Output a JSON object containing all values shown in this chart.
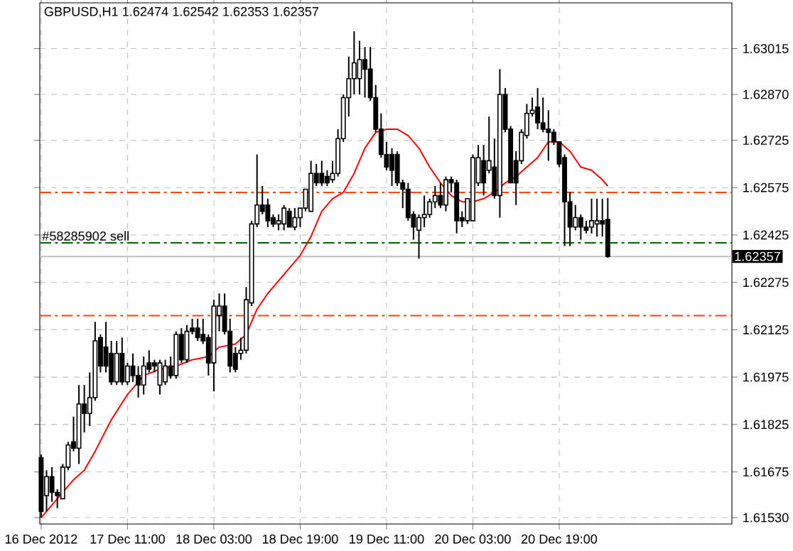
{
  "chart_data": {
    "type": "candlestick",
    "title": "GBPUSD,H1  1.62474 1.62542 1.62353 1.62357",
    "x": [
      "2012-12-16T19:00",
      "2012-12-16T20:00",
      "2012-12-16T21:00",
      "2012-12-16T22:00",
      "2012-12-16T23:00",
      "2012-12-17T00:00",
      "2012-12-17T01:00",
      "2012-12-17T02:00",
      "2012-12-17T03:00",
      "2012-12-17T04:00",
      "2012-12-17T05:00",
      "2012-12-17T06:00",
      "2012-12-17T07:00",
      "2012-12-17T08:00",
      "2012-12-17T09:00",
      "2012-12-17T10:00",
      "2012-12-17T11:00",
      "2012-12-17T12:00",
      "2012-12-17T13:00",
      "2012-12-17T14:00",
      "2012-12-17T15:00",
      "2012-12-17T16:00",
      "2012-12-17T17:00",
      "2012-12-17T18:00",
      "2012-12-17T19:00",
      "2012-12-17T20:00",
      "2012-12-17T21:00",
      "2012-12-17T22:00",
      "2012-12-17T23:00",
      "2012-12-18T00:00",
      "2012-12-18T01:00",
      "2012-12-18T02:00",
      "2012-12-18T03:00",
      "2012-12-18T04:00",
      "2012-12-18T05:00",
      "2012-12-18T06:00",
      "2012-12-18T07:00",
      "2012-12-18T08:00",
      "2012-12-18T09:00",
      "2012-12-18T10:00",
      "2012-12-18T11:00",
      "2012-12-18T12:00",
      "2012-12-18T13:00",
      "2012-12-18T14:00",
      "2012-12-18T15:00",
      "2012-12-18T16:00",
      "2012-12-18T17:00",
      "2012-12-18T18:00",
      "2012-12-18T19:00",
      "2012-12-18T20:00",
      "2012-12-18T21:00",
      "2012-12-18T22:00",
      "2012-12-18T23:00",
      "2012-12-19T00:00",
      "2012-12-19T01:00",
      "2012-12-19T02:00",
      "2012-12-19T03:00",
      "2012-12-19T04:00",
      "2012-12-19T05:00",
      "2012-12-19T06:00",
      "2012-12-19T07:00",
      "2012-12-19T08:00",
      "2012-12-19T09:00",
      "2012-12-19T10:00",
      "2012-12-19T11:00",
      "2012-12-19T12:00",
      "2012-12-19T13:00",
      "2012-12-19T14:00",
      "2012-12-19T15:00",
      "2012-12-19T16:00",
      "2012-12-19T17:00",
      "2012-12-19T18:00",
      "2012-12-19T19:00",
      "2012-12-19T20:00",
      "2012-12-19T21:00",
      "2012-12-19T22:00",
      "2012-12-19T23:00",
      "2012-12-20T00:00",
      "2012-12-20T01:00",
      "2012-12-20T02:00",
      "2012-12-20T03:00",
      "2012-12-20T04:00",
      "2012-12-20T05:00",
      "2012-12-20T06:00",
      "2012-12-20T07:00",
      "2012-12-20T08:00",
      "2012-12-20T09:00",
      "2012-12-20T10:00",
      "2012-12-20T11:00",
      "2012-12-20T12:00",
      "2012-12-20T13:00",
      "2012-12-20T14:00",
      "2012-12-20T15:00",
      "2012-12-20T16:00",
      "2012-12-20T17:00",
      "2012-12-20T18:00",
      "2012-12-20T19:00",
      "2012-12-20T20:00",
      "2012-12-20T21:00",
      "2012-12-20T22:00",
      "2012-12-20T23:00",
      "2012-12-21T00:00",
      "2012-12-21T01:00",
      "2012-12-21T02:00",
      "2012-12-21T03:00",
      "2012-12-21T04:00"
    ],
    "ohlc": [
      [
        1.6172,
        1.6173,
        1.6153,
        1.6155
      ],
      [
        1.616,
        1.6168,
        1.6155,
        1.6166
      ],
      [
        1.6166,
        1.6169,
        1.6158,
        1.6161
      ],
      [
        1.6161,
        1.6162,
        1.6156,
        1.616
      ],
      [
        1.6159,
        1.617,
        1.6159,
        1.6169
      ],
      [
        1.6169,
        1.6177,
        1.6168,
        1.6176
      ],
      [
        1.6177,
        1.6185,
        1.6174,
        1.6175
      ],
      [
        1.6175,
        1.6195,
        1.617,
        1.6189
      ],
      [
        1.6189,
        1.6195,
        1.618,
        1.6186
      ],
      [
        1.6186,
        1.6199,
        1.6182,
        1.6191
      ],
      [
        1.6191,
        1.6215,
        1.619,
        1.6209
      ],
      [
        1.621,
        1.6211,
        1.6199,
        1.6201
      ],
      [
        1.6207,
        1.6215,
        1.6199,
        1.6201
      ],
      [
        1.6205,
        1.6209,
        1.6195,
        1.6196
      ],
      [
        1.6196,
        1.6209,
        1.6195,
        1.6205
      ],
      [
        1.6205,
        1.621,
        1.6195,
        1.6196
      ],
      [
        1.6196,
        1.6202,
        1.6195,
        1.6201
      ],
      [
        1.6201,
        1.6205,
        1.6196,
        1.6198
      ],
      [
        1.6198,
        1.6201,
        1.6191,
        1.6195
      ],
      [
        1.6195,
        1.6204,
        1.6192,
        1.6201
      ],
      [
        1.6202,
        1.6206,
        1.6199,
        1.62
      ],
      [
        1.6202,
        1.6203,
        1.6199,
        1.6201
      ],
      [
        1.6195,
        1.6203,
        1.6192,
        1.6202
      ],
      [
        1.6196,
        1.6203,
        1.6195,
        1.6201
      ],
      [
        1.6201,
        1.6204,
        1.6197,
        1.6198
      ],
      [
        1.6198,
        1.6212,
        1.6197,
        1.6211
      ],
      [
        1.6211,
        1.6213,
        1.6202,
        1.6203
      ],
      [
        1.6203,
        1.6214,
        1.6202,
        1.6212
      ],
      [
        1.6213,
        1.6216,
        1.6211,
        1.6212
      ],
      [
        1.6213,
        1.6216,
        1.6209,
        1.621
      ],
      [
        1.6211,
        1.6216,
        1.6208,
        1.6209
      ],
      [
        1.621,
        1.6211,
        1.6198,
        1.6202
      ],
      [
        1.6202,
        1.6222,
        1.6193,
        1.622
      ],
      [
        1.6217,
        1.6224,
        1.6212,
        1.622
      ],
      [
        1.622,
        1.6224,
        1.6211,
        1.6212
      ],
      [
        1.6212,
        1.6216,
        1.6199,
        1.6201
      ],
      [
        1.6205,
        1.6207,
        1.6199,
        1.62
      ],
      [
        1.6205,
        1.621,
        1.6203,
        1.6206
      ],
      [
        1.6206,
        1.6226,
        1.6205,
        1.6222
      ],
      [
        1.6221,
        1.6247,
        1.622,
        1.6246
      ],
      [
        1.6246,
        1.6268,
        1.6245,
        1.6252
      ],
      [
        1.6252,
        1.6258,
        1.6249,
        1.625
      ],
      [
        1.6252,
        1.6254,
        1.6245,
        1.6247
      ],
      [
        1.6248,
        1.6249,
        1.6245,
        1.6246
      ],
      [
        1.6246,
        1.6249,
        1.6244,
        1.6247
      ],
      [
        1.6246,
        1.6252,
        1.6244,
        1.6251
      ],
      [
        1.625,
        1.6251,
        1.6245,
        1.6245
      ],
      [
        1.6245,
        1.6251,
        1.6244,
        1.6248
      ],
      [
        1.6248,
        1.6251,
        1.6245,
        1.6251
      ],
      [
        1.6251,
        1.6257,
        1.625,
        1.6257
      ],
      [
        1.625,
        1.6266,
        1.625,
        1.6262
      ],
      [
        1.6262,
        1.6265,
        1.6258,
        1.6259
      ],
      [
        1.6262,
        1.6266,
        1.6258,
        1.6259
      ],
      [
        1.6261,
        1.6263,
        1.6258,
        1.6259
      ],
      [
        1.626,
        1.6266,
        1.6259,
        1.6262
      ],
      [
        1.6262,
        1.6276,
        1.6261,
        1.6273
      ],
      [
        1.6273,
        1.6287,
        1.6272,
        1.6286
      ],
      [
        1.6286,
        1.6299,
        1.628,
        1.6292
      ],
      [
        1.6292,
        1.6307,
        1.6287,
        1.6297
      ],
      [
        1.6292,
        1.6304,
        1.6287,
        1.6298
      ],
      [
        1.6298,
        1.6302,
        1.6286,
        1.6295
      ],
      [
        1.6295,
        1.6302,
        1.6285,
        1.6286
      ],
      [
        1.6286,
        1.629,
        1.6275,
        1.6276
      ],
      [
        1.6276,
        1.6281,
        1.6267,
        1.6268
      ],
      [
        1.6268,
        1.6272,
        1.6263,
        1.6264
      ],
      [
        1.6268,
        1.627,
        1.6258,
        1.6263
      ],
      [
        1.6268,
        1.6269,
        1.6258,
        1.6259
      ],
      [
        1.6259,
        1.626,
        1.6251,
        1.6257
      ],
      [
        1.6257,
        1.6259,
        1.6247,
        1.6248
      ],
      [
        1.6249,
        1.625,
        1.6241,
        1.6245
      ],
      [
        1.6244,
        1.6249,
        1.6235,
        1.6248
      ],
      [
        1.6248,
        1.6255,
        1.6245,
        1.6249
      ],
      [
        1.6249,
        1.6254,
        1.6248,
        1.6253
      ],
      [
        1.6253,
        1.6258,
        1.6251,
        1.6255
      ],
      [
        1.6255,
        1.6259,
        1.6251,
        1.6252
      ],
      [
        1.6252,
        1.6261,
        1.625,
        1.626
      ],
      [
        1.626,
        1.6261,
        1.6256,
        1.6259
      ],
      [
        1.6259,
        1.626,
        1.6243,
        1.6247
      ],
      [
        1.6248,
        1.625,
        1.6245,
        1.6247
      ],
      [
        1.6247,
        1.6254,
        1.6246,
        1.6254
      ],
      [
        1.6247,
        1.6268,
        1.6247,
        1.6267
      ],
      [
        1.6259,
        1.6271,
        1.6258,
        1.6267
      ],
      [
        1.6266,
        1.6271,
        1.6255,
        1.6259
      ],
      [
        1.6263,
        1.628,
        1.6262,
        1.6266
      ],
      [
        1.6264,
        1.6273,
        1.6254,
        1.6255
      ],
      [
        1.6255,
        1.6295,
        1.6248,
        1.6287
      ],
      [
        1.6287,
        1.6289,
        1.6275,
        1.6276
      ],
      [
        1.6276,
        1.6277,
        1.6259,
        1.6259
      ],
      [
        1.6266,
        1.6269,
        1.6252,
        1.6259
      ],
      [
        1.6266,
        1.6276,
        1.6265,
        1.6275
      ],
      [
        1.6274,
        1.6284,
        1.6273,
        1.6281
      ],
      [
        1.6281,
        1.6286,
        1.628,
        1.6282
      ],
      [
        1.6283,
        1.6289,
        1.6276,
        1.6278
      ],
      [
        1.6278,
        1.6286,
        1.6275,
        1.6276
      ],
      [
        1.6276,
        1.6282,
        1.6266,
        1.6275
      ],
      [
        1.6275,
        1.6276,
        1.6271,
        1.6272
      ],
      [
        1.6272,
        1.6272,
        1.6264,
        1.6265
      ],
      [
        1.6267,
        1.6268,
        1.6239,
        1.6253
      ],
      [
        1.6253,
        1.6256,
        1.6239,
        1.6245
      ],
      [
        1.6245,
        1.6252,
        1.6244,
        1.6248
      ],
      [
        1.6248,
        1.6249,
        1.6241,
        1.6245
      ],
      [
        1.6245,
        1.6247,
        1.6243,
        1.6244
      ],
      [
        1.6245,
        1.6254,
        1.6243,
        1.6247
      ],
      [
        1.6246,
        1.6254,
        1.6242,
        1.6247
      ],
      [
        1.6247,
        1.6254,
        1.6242,
        1.6246
      ],
      [
        1.62474,
        1.62542,
        1.62353,
        1.62357
      ]
    ],
    "series": [
      {
        "type": "line",
        "color": "#ff0000",
        "x": [
          "2012-12-16T19:00",
          "2012-12-16T22:00",
          "2012-12-17T01:00",
          "2012-12-17T03:00",
          "2012-12-17T05:00",
          "2012-12-17T08:00",
          "2012-12-17T11:00",
          "2012-12-17T14:00",
          "2012-12-17T17:00",
          "2012-12-17T20:00",
          "2012-12-17T23:00",
          "2012-12-18T02:00",
          "2012-12-18T04:00",
          "2012-12-18T07:00",
          "2012-12-18T09:00",
          "2012-12-18T11:00",
          "2012-12-18T13:00",
          "2012-12-18T16:00",
          "2012-12-18T19:00",
          "2012-12-18T21:00",
          "2012-12-18T23:00",
          "2012-12-19T01:00",
          "2012-12-19T03:00",
          "2012-12-19T05:00",
          "2012-12-19T07:00",
          "2012-12-19T09:00",
          "2012-12-19T11:00",
          "2012-12-19T13:00",
          "2012-12-19T15:00",
          "2012-12-19T17:00",
          "2012-12-19T19:00",
          "2012-12-19T21:00",
          "2012-12-19T23:00",
          "2012-12-20T01:00",
          "2012-12-20T03:00",
          "2012-12-20T05:00",
          "2012-12-20T07:00",
          "2012-12-20T09:00",
          "2012-12-20T11:00",
          "2012-12-20T13:00",
          "2012-12-20T15:00",
          "2012-12-20T17:00",
          "2012-12-20T19:00",
          "2012-12-20T21:00",
          "2012-12-20T23:00",
          "2012-12-21T01:00",
          "2012-12-21T03:00",
          "2012-12-21T04:00"
        ],
        "values": [
          1.6153,
          1.6159,
          1.6165,
          1.6168,
          1.6174,
          1.6184,
          1.6192,
          1.6198,
          1.62,
          1.6201,
          1.6203,
          1.6204,
          1.6207,
          1.6208,
          1.6211,
          1.6219,
          1.6224,
          1.623,
          1.6236,
          1.6242,
          1.625,
          1.6254,
          1.6256,
          1.6262,
          1.627,
          1.6275,
          1.6276,
          1.6276,
          1.6274,
          1.627,
          1.6264,
          1.6259,
          1.6255,
          1.6253,
          1.6253,
          1.6254,
          1.6256,
          1.6259,
          1.6261,
          1.6264,
          1.6267,
          1.6272,
          1.6272,
          1.6269,
          1.6264,
          1.6263,
          1.626,
          1.6258
        ]
      }
    ],
    "ref_lines": [
      {
        "axis": "y",
        "value": 1.6256,
        "color": "#ff4500",
        "line_style": "dashdot"
      },
      {
        "axis": "y",
        "value": 1.6217,
        "color": "#ff4500",
        "line_style": "dashdot"
      },
      {
        "axis": "y",
        "value": 1.624,
        "color": "#006400",
        "line_style": "dashdot",
        "label": "#58285902 sell"
      },
      {
        "axis": "y",
        "value": 1.62357,
        "color": "#c0c0c0",
        "line_style": "solid",
        "label": "1.62357"
      }
    ],
    "xlim": [
      "2012-12-16T18:45",
      "2012-12-22T03:00"
    ],
    "xticks": [
      {
        "value": "2012-12-16T19:00",
        "label": "16 Dec 2012"
      },
      {
        "value": "2012-12-17T11:00",
        "label": "17 Dec 11:00"
      },
      {
        "value": "2012-12-18T03:00",
        "label": "18 Dec 03:00"
      },
      {
        "value": "2012-12-18T19:00",
        "label": "18 Dec 19:00"
      },
      {
        "value": "2012-12-19T11:00",
        "label": "19 Dec 11:00"
      },
      {
        "value": "2012-12-20T03:00",
        "label": "20 Dec 03:00"
      },
      {
        "value": "2012-12-20T19:00",
        "label": "20 Dec 19:00"
      }
    ],
    "ylim": [
      1.6151,
      1.6316
    ],
    "yticks": [
      1.63015,
      {
        "value": 1.6287,
        "label": "1.62870"
      },
      1.62725,
      1.62575,
      1.62425,
      1.62275,
      1.62125,
      1.61975,
      1.61825,
      1.61675,
      {
        "value": 1.6153,
        "label": "1.61530"
      }
    ],
    "grid": true,
    "marker": "none"
  }
}
